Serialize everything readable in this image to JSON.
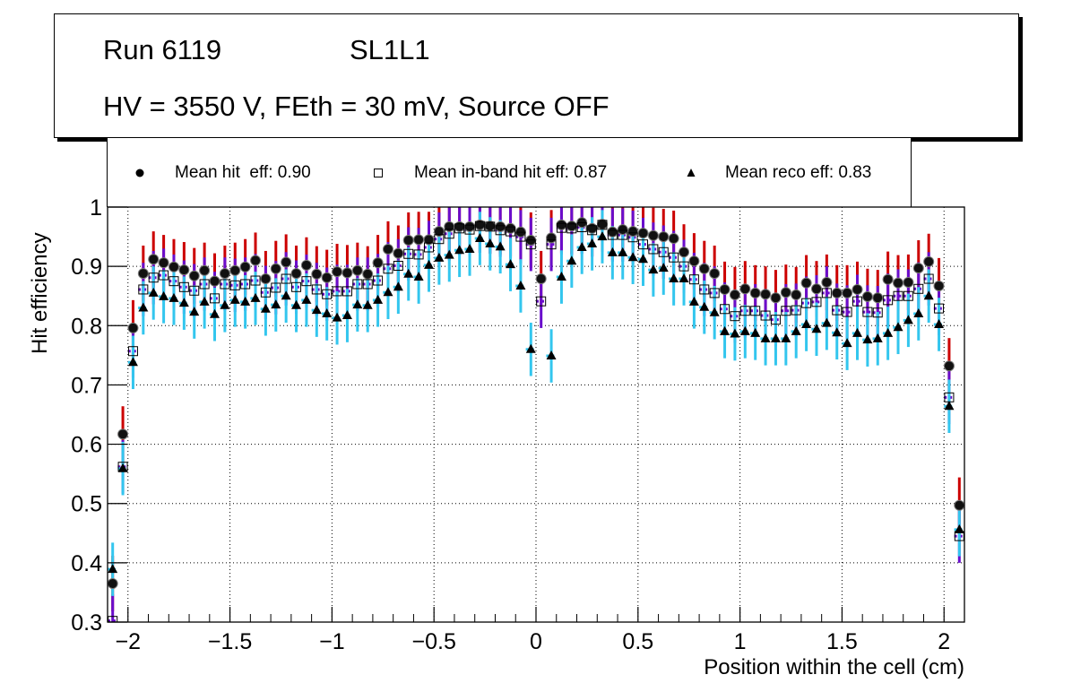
{
  "title_box": {
    "line1_left": "Run 6119",
    "line1_right": "SL1L1",
    "line2": "HV = 3550 V, FEth = 30 mV, Source OFF"
  },
  "legend": {
    "entries": [
      {
        "label": "Mean hit  eff: 0.90",
        "marker": "filled-circle"
      },
      {
        "label": "Mean in-band hit eff: 0.87",
        "marker": "open-square"
      },
      {
        "label": "Mean reco eff: 0.83",
        "marker": "filled-triangle"
      }
    ]
  },
  "colors": {
    "hit_error": "#cc0000",
    "inband_error": "#6a0dcc",
    "reco_error": "#33c6ee",
    "marker": "#000000"
  },
  "chart_data": {
    "type": "scatter",
    "title": "",
    "xlabel": "Position within the cell (cm)",
    "ylabel": "Hit efficiency",
    "xlim": [
      -2.1,
      2.1
    ],
    "ylim": [
      0.3,
      1.0
    ],
    "grid": true,
    "legend_position": "top",
    "xticks": [
      -2,
      -1.5,
      -1,
      -0.5,
      0,
      0.5,
      1,
      1.5,
      2
    ],
    "xtick_labels": [
      "−2",
      "−1.5",
      "−1",
      "−0.5",
      "0",
      "0.5",
      "1",
      "1.5",
      "2"
    ],
    "yticks": [
      0.3,
      0.4,
      0.5,
      0.6,
      0.7,
      0.8,
      0.9,
      1.0
    ],
    "ytick_labels": [
      "0.3",
      "0.4",
      "0.5",
      "0.6",
      "0.7",
      "0.8",
      "0.9",
      "1"
    ],
    "bin_width": 0.05,
    "x": [
      -2.075,
      -2.025,
      -1.975,
      -1.925,
      -1.875,
      -1.825,
      -1.775,
      -1.725,
      -1.675,
      -1.625,
      -1.575,
      -1.525,
      -1.475,
      -1.425,
      -1.375,
      -1.325,
      -1.275,
      -1.225,
      -1.175,
      -1.125,
      -1.075,
      -1.025,
      -0.975,
      -0.925,
      -0.875,
      -0.825,
      -0.775,
      -0.725,
      -0.675,
      -0.625,
      -0.575,
      -0.525,
      -0.475,
      -0.425,
      -0.375,
      -0.325,
      -0.275,
      -0.225,
      -0.175,
      -0.125,
      -0.075,
      -0.025,
      0.025,
      0.075,
      0.125,
      0.175,
      0.225,
      0.275,
      0.325,
      0.375,
      0.425,
      0.475,
      0.525,
      0.575,
      0.625,
      0.675,
      0.725,
      0.775,
      0.825,
      0.875,
      0.925,
      0.975,
      1.025,
      1.075,
      1.125,
      1.175,
      1.225,
      1.275,
      1.325,
      1.375,
      1.425,
      1.475,
      1.525,
      1.575,
      1.625,
      1.675,
      1.725,
      1.775,
      1.825,
      1.875,
      1.925,
      1.975,
      2.025,
      2.075
    ],
    "series": [
      {
        "name": "Mean hit  eff: 0.90",
        "marker": "filled-circle",
        "error": 0.047,
        "values": [
          0.365,
          0.617,
          0.796,
          0.888,
          0.912,
          0.906,
          0.899,
          0.894,
          0.884,
          0.893,
          0.875,
          0.888,
          0.893,
          0.899,
          0.91,
          0.879,
          0.896,
          0.907,
          0.888,
          0.902,
          0.887,
          0.881,
          0.891,
          0.889,
          0.893,
          0.887,
          0.906,
          0.929,
          0.922,
          0.944,
          0.945,
          0.945,
          0.959,
          0.967,
          0.967,
          0.967,
          0.97,
          0.968,
          0.967,
          0.964,
          0.958,
          0.944,
          0.879,
          0.948,
          0.97,
          0.968,
          0.974,
          0.964,
          0.971,
          0.958,
          0.962,
          0.959,
          0.956,
          0.952,
          0.95,
          0.947,
          0.924,
          0.909,
          0.896,
          0.888,
          0.861,
          0.852,
          0.862,
          0.855,
          0.853,
          0.847,
          0.856,
          0.852,
          0.872,
          0.862,
          0.873,
          0.855,
          0.855,
          0.861,
          0.849,
          0.847,
          0.878,
          0.872,
          0.873,
          0.897,
          0.908,
          0.867,
          0.732,
          0.497
        ]
      },
      {
        "name": "Mean in-band hit eff: 0.87",
        "marker": "open-square",
        "error": 0.045,
        "values": [
          0.302,
          0.562,
          0.757,
          0.861,
          0.881,
          0.885,
          0.875,
          0.865,
          0.859,
          0.87,
          0.846,
          0.87,
          0.868,
          0.87,
          0.876,
          0.856,
          0.864,
          0.879,
          0.865,
          0.875,
          0.861,
          0.853,
          0.858,
          0.858,
          0.87,
          0.87,
          0.876,
          0.896,
          0.901,
          0.921,
          0.92,
          0.932,
          0.946,
          0.955,
          0.964,
          0.962,
          0.968,
          0.967,
          0.961,
          0.959,
          0.95,
          0.937,
          0.841,
          0.937,
          0.965,
          0.964,
          0.966,
          0.961,
          0.97,
          0.953,
          0.953,
          0.949,
          0.937,
          0.929,
          0.924,
          0.915,
          0.9,
          0.878,
          0.861,
          0.855,
          0.828,
          0.816,
          0.825,
          0.825,
          0.817,
          0.81,
          0.825,
          0.826,
          0.838,
          0.84,
          0.855,
          0.826,
          0.823,
          0.841,
          0.823,
          0.822,
          0.843,
          0.85,
          0.85,
          0.862,
          0.879,
          0.829,
          0.679,
          0.445
        ]
      },
      {
        "name": "Mean reco eff: 0.83",
        "marker": "filled-triangle",
        "error": 0.045,
        "values": [
          0.389,
          0.559,
          0.738,
          0.83,
          0.855,
          0.849,
          0.846,
          0.838,
          0.823,
          0.84,
          0.819,
          0.834,
          0.843,
          0.84,
          0.846,
          0.828,
          0.835,
          0.85,
          0.834,
          0.843,
          0.826,
          0.82,
          0.813,
          0.817,
          0.835,
          0.834,
          0.843,
          0.856,
          0.865,
          0.887,
          0.882,
          0.902,
          0.914,
          0.919,
          0.927,
          0.929,
          0.947,
          0.938,
          0.933,
          0.903,
          0.867,
          0.76,
          null,
          0.749,
          0.882,
          0.909,
          0.932,
          0.938,
          0.95,
          0.923,
          0.923,
          0.915,
          0.912,
          0.894,
          0.897,
          0.879,
          0.879,
          0.84,
          0.831,
          0.822,
          0.79,
          0.786,
          0.79,
          0.787,
          0.778,
          0.778,
          0.778,
          0.79,
          0.802,
          0.794,
          0.804,
          0.788,
          0.77,
          0.787,
          0.776,
          0.778,
          0.787,
          0.797,
          0.809,
          0.82,
          0.85,
          0.802,
          0.664,
          0.456
        ]
      }
    ]
  }
}
